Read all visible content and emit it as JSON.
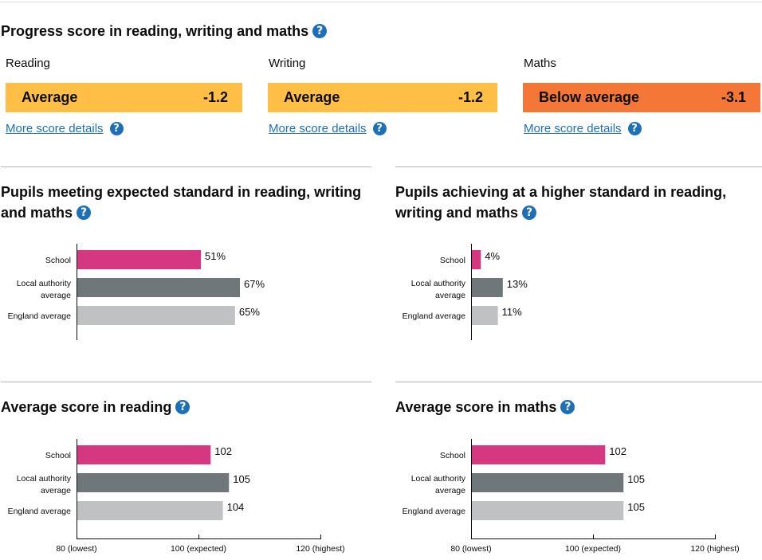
{
  "progress": {
    "title": "Progress score in reading, writing and maths",
    "subjects": [
      {
        "name": "Reading",
        "band": "Average",
        "score": "-1.2",
        "link": "More score details",
        "color": "#ffbf47"
      },
      {
        "name": "Writing",
        "band": "Average",
        "score": "-1.2",
        "link": "More score details",
        "color": "#ffbf47"
      },
      {
        "name": "Maths",
        "band": "Below average",
        "score": "-3.1",
        "link": "More score details",
        "color": "#f47738"
      }
    ]
  },
  "help_icon": "question-circle-icon",
  "help_glyph": "?",
  "colors": {
    "school": "#d53880",
    "local_authority": "#6f777b",
    "england": "#bfc1c3",
    "accent": "#1d70b8"
  },
  "chart_data": [
    {
      "type": "bar",
      "title": "Pupils meeting expected standard in reading, writing and maths",
      "title_lines": [
        "Pupils meeting expected standard in reading, writing",
        "and maths"
      ],
      "categories": [
        [
          "School"
        ],
        [
          "Local authority",
          "average"
        ],
        [
          "England average"
        ]
      ],
      "values": [
        51,
        67,
        65
      ],
      "value_suffix": "%",
      "xlim": [
        0,
        100
      ],
      "show_axis": false
    },
    {
      "type": "bar",
      "title": "Pupils achieving at a higher standard in reading, writing and maths",
      "title_lines": [
        "Pupils achieving at a higher standard in reading,",
        "writing and maths"
      ],
      "categories": [
        [
          "School"
        ],
        [
          "Local authority",
          "average"
        ],
        [
          "England average"
        ]
      ],
      "values": [
        4,
        13,
        11
      ],
      "value_suffix": "%",
      "xlim": [
        0,
        100
      ],
      "show_axis": false
    },
    {
      "type": "bar",
      "title": "Average score in reading",
      "title_lines": [
        "Average score in reading"
      ],
      "categories": [
        [
          "School"
        ],
        [
          "Local authority",
          "average"
        ],
        [
          "England average"
        ]
      ],
      "values": [
        102,
        105,
        104
      ],
      "value_suffix": "",
      "xlim": [
        80,
        120
      ],
      "show_axis": true,
      "ticks": [
        80,
        100,
        120
      ],
      "tick_labels": [
        "80 (lowest)",
        "100 (expected)",
        "120 (highest)"
      ]
    },
    {
      "type": "bar",
      "title": "Average score in maths",
      "title_lines": [
        "Average score in maths"
      ],
      "categories": [
        [
          "School"
        ],
        [
          "Local authority",
          "average"
        ],
        [
          "England average"
        ]
      ],
      "values": [
        102,
        105,
        105
      ],
      "value_suffix": "",
      "xlim": [
        80,
        120
      ],
      "show_axis": true,
      "ticks": [
        80,
        100,
        120
      ],
      "tick_labels": [
        "80 (lowest)",
        "100 (expected)",
        "120 (highest)"
      ]
    }
  ]
}
